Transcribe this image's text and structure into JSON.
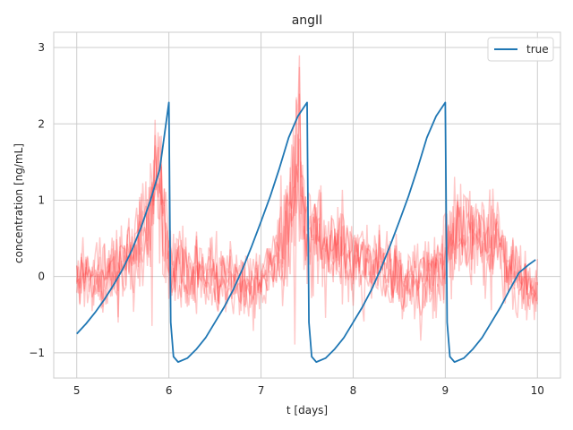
{
  "chart_data": {
    "type": "line",
    "title": "angII",
    "xlabel": "t [days]",
    "ylabel": "concentration [ng/mL]",
    "xlim": [
      4.75,
      10.25
    ],
    "ylim": [
      -1.33,
      3.2
    ],
    "xticks": [
      "5",
      "6",
      "7",
      "8",
      "9",
      "10"
    ],
    "yticks": [
      "−1",
      "0",
      "1",
      "2",
      "3"
    ],
    "grid": true,
    "legend_position": "top-right",
    "series": [
      {
        "name": "true",
        "color": "#1f77b4",
        "x": [
          5.0,
          5.1,
          5.2,
          5.3,
          5.4,
          5.5,
          5.6,
          5.7,
          5.8,
          5.9,
          6.0,
          6.02,
          6.05,
          6.1,
          6.2,
          6.3,
          6.4,
          6.5,
          6.6,
          6.7,
          6.8,
          6.9,
          7.0,
          7.1,
          7.2,
          7.3,
          7.4,
          7.5,
          7.52,
          7.55,
          7.6,
          7.7,
          7.8,
          7.9,
          8.0,
          8.1,
          8.2,
          8.3,
          8.4,
          8.5,
          8.6,
          8.7,
          8.8,
          8.9,
          9.0,
          9.02,
          9.05,
          9.1,
          9.2,
          9.3,
          9.4,
          9.5,
          9.6,
          9.7,
          9.8,
          9.9,
          9.98
        ],
        "y": [
          -0.75,
          -0.62,
          -0.47,
          -0.3,
          -0.11,
          0.1,
          0.35,
          0.65,
          1.0,
          1.4,
          2.28,
          -0.6,
          -1.05,
          -1.12,
          -1.07,
          -0.95,
          -0.8,
          -0.6,
          -0.4,
          -0.17,
          0.1,
          0.4,
          0.72,
          1.05,
          1.42,
          1.82,
          2.1,
          2.28,
          -0.6,
          -1.05,
          -1.12,
          -1.07,
          -0.95,
          -0.8,
          -0.6,
          -0.4,
          -0.17,
          0.1,
          0.4,
          0.72,
          1.05,
          1.42,
          1.82,
          2.1,
          2.28,
          -0.6,
          -1.05,
          -1.12,
          -1.07,
          -0.95,
          -0.8,
          -0.6,
          -0.4,
          -0.17,
          0.05,
          0.15,
          0.22
        ]
      },
      {
        "name": "",
        "color": "#ff3b3b",
        "style": "noisy-band",
        "x": [
          5.0,
          5.25,
          5.5,
          5.75,
          5.9,
          6.0,
          6.25,
          6.5,
          6.75,
          7.0,
          7.25,
          7.4,
          7.5,
          7.75,
          8.0,
          8.25,
          8.5,
          8.75,
          9.0,
          9.1,
          9.25,
          9.5,
          9.75,
          10.0
        ],
        "y": [
          0.0,
          0.0,
          0.1,
          0.6,
          1.3,
          0.2,
          0.05,
          0.0,
          -0.05,
          -0.1,
          0.4,
          1.5,
          0.6,
          0.3,
          0.2,
          0.15,
          0.0,
          -0.1,
          0.25,
          0.6,
          0.5,
          0.4,
          0.1,
          -0.3
        ]
      }
    ]
  }
}
